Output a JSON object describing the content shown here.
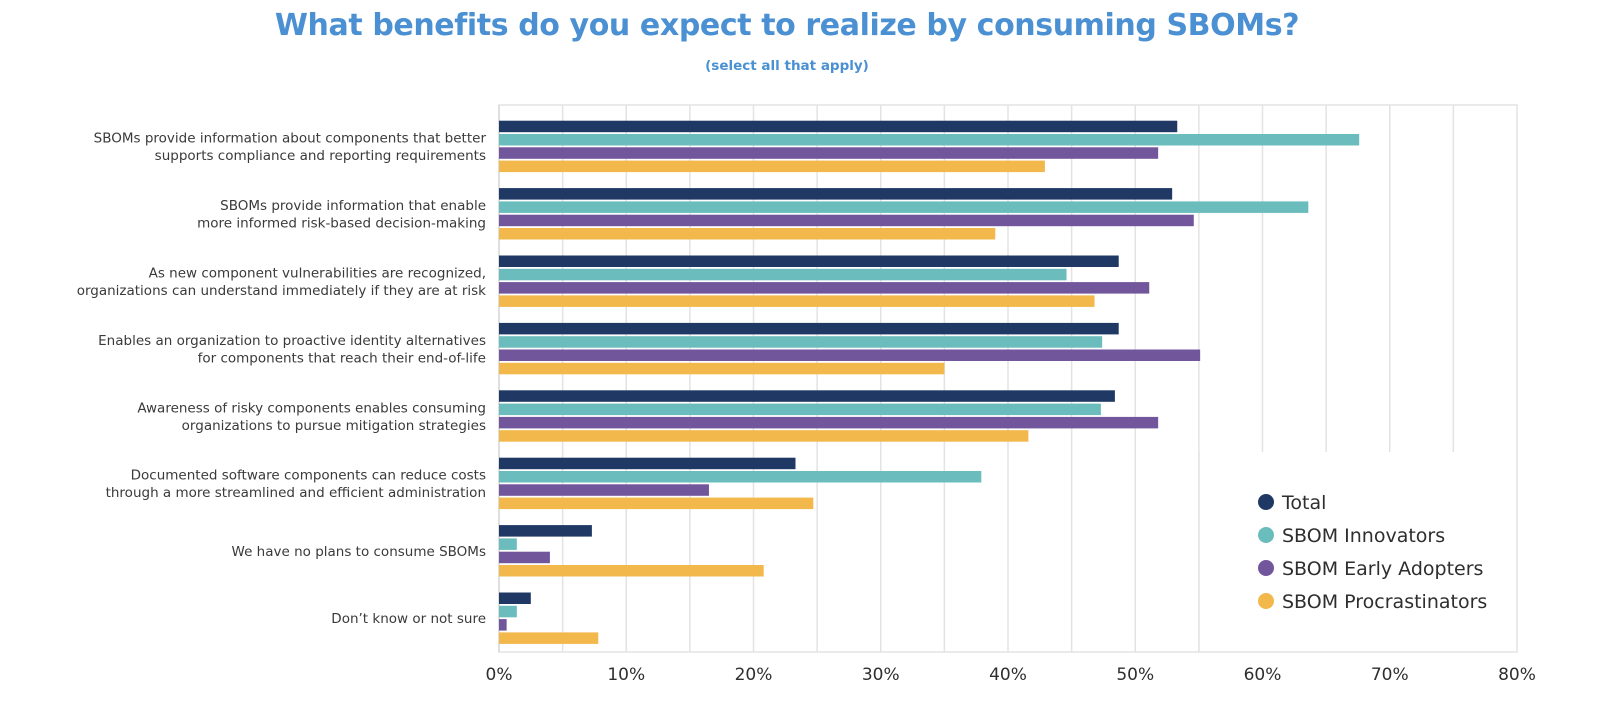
{
  "chart_data": {
    "type": "bar",
    "orientation": "horizontal",
    "title": "What benefits do you expect to realize by consuming SBOMs?",
    "subtitle": "(select all that apply)",
    "xlabel": "",
    "ylabel": "",
    "xlim": [
      0,
      80
    ],
    "x_ticks": [
      "0%",
      "10%",
      "20%",
      "30%",
      "40%",
      "50%",
      "60%",
      "70%",
      "80%"
    ],
    "x_tick_values": [
      0,
      10,
      20,
      30,
      40,
      50,
      60,
      70,
      80
    ],
    "minor_grid_step": 5,
    "grid": true,
    "legend_position": "bottom-right",
    "categories": [
      [
        "SBOMs provide information about components that better",
        "supports compliance and reporting requirements"
      ],
      [
        "SBOMs provide information that enable",
        "more informed risk-based decision-making"
      ],
      [
        "As new component vulnerabilities are recognized,",
        "organizations  can understand immediately if they are at risk"
      ],
      [
        "Enables an organization to proactive identity alternatives",
        "for components that reach their end-of-life"
      ],
      [
        "Awareness of risky components enables consuming",
        "organizations to pursue mitigation strategies"
      ],
      [
        "Documented software components can reduce costs",
        "through a more streamlined and efficient administration"
      ],
      [
        "We have no plans to consume SBOMs"
      ],
      [
        "Don’t know or not sure"
      ]
    ],
    "series": [
      {
        "name": "Total",
        "color": "#1f3864",
        "values": [
          53.3,
          52.9,
          48.7,
          48.7,
          48.4,
          23.3,
          7.3,
          2.5
        ]
      },
      {
        "name": "SBOM Innovators",
        "color": "#6bbcbc",
        "values": [
          67.6,
          63.6,
          44.6,
          47.4,
          47.3,
          37.9,
          1.4,
          1.4
        ]
      },
      {
        "name": "SBOM Early Adopters",
        "color": "#72569c",
        "values": [
          51.8,
          54.6,
          51.1,
          55.1,
          51.8,
          16.5,
          4.0,
          0.6
        ]
      },
      {
        "name": "SBOM Procrastinators",
        "color": "#f2b84b",
        "values": [
          42.9,
          39.0,
          46.8,
          35.0,
          41.6,
          24.7,
          20.8,
          7.8
        ]
      }
    ]
  }
}
